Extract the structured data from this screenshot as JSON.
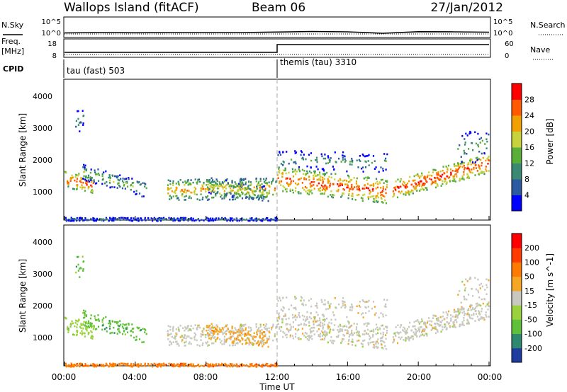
{
  "header": {
    "station": "Wallops Island (fitACF)",
    "beam": "Beam 06",
    "date": "27/Jan/2012"
  },
  "side_labels": {
    "nsky": "N.Sky",
    "nsearch": "N.Search",
    "freq": "Freq.",
    "freq_unit": "[MHz]",
    "nave": "Nave",
    "cpid": "CPID"
  },
  "noise_ticks": {
    "top": "10^5",
    "bottom": "10^0"
  },
  "freq_ticks": [
    "18",
    "8"
  ],
  "nave_ticks": [
    "60",
    "0"
  ],
  "cpid": {
    "left": "tau (fast) 503",
    "right": "themis (tau) 3310"
  },
  "xaxis": {
    "label": "Time UT",
    "ticks": [
      "00:00",
      "04:00",
      "08:00",
      "12:00",
      "16:00",
      "20:00",
      "00:00"
    ]
  },
  "yaxis": {
    "label": "Slant Range [km]",
    "ticks": [
      "1000",
      "2000",
      "3000",
      "4000"
    ]
  },
  "power_scale": {
    "label": "Power [dB]",
    "ticks": [
      "4",
      "8",
      "12",
      "16",
      "20",
      "24",
      "28"
    ],
    "colors": [
      "#0000ff",
      "#2c5aa0",
      "#3a8a73",
      "#5aae3a",
      "#c8d23c",
      "#f0a000",
      "#ff5a00",
      "#ff0000"
    ]
  },
  "velocity_scale": {
    "label": "Velocity [m s^-1]",
    "ticks": [
      "200",
      "100",
      "50",
      "15",
      "-15",
      "-50",
      "-100",
      "-200"
    ],
    "colors": [
      "#1e3ca0",
      "#2e8a6e",
      "#5fc03a",
      "#9ad23e",
      "#c8c8c0",
      "#f5a623",
      "#ff7a00",
      "#ff3c00",
      "#ff0000"
    ]
  },
  "chart_data": [
    {
      "type": "line",
      "title": "",
      "description_series": [
        {
          "name": "N.Sky",
          "x": [
            0,
            2,
            4,
            6,
            8,
            10,
            12,
            14,
            16,
            18,
            20,
            22,
            24
          ],
          "y_log10": [
            0.7,
            0.8,
            0.75,
            0.8,
            0.8,
            0.8,
            0.95,
            1.1,
            1.0,
            0.6,
            1.05,
            1.0,
            0.9
          ]
        }
      ]
    },
    {
      "type": "line",
      "series": [
        {
          "name": "Freq.",
          "x": [
            0,
            12,
            12,
            24
          ],
          "y": [
            11,
            11,
            16,
            16
          ]
        }
      ]
    },
    {
      "type": "heatmap",
      "title": "",
      "xlabel": "Time UT",
      "ylabel": "Slant Range [km]",
      "xlim": [
        0,
        24
      ],
      "ylim": [
        180,
        4600
      ],
      "colorbar": "Power [dB]",
      "clim": [
        0,
        32
      ]
    },
    {
      "type": "heatmap",
      "title": "",
      "xlabel": "Time UT",
      "ylabel": "Slant Range [km]",
      "xlim": [
        0,
        24
      ],
      "ylim": [
        180,
        4600
      ],
      "colorbar": "Velocity [m s^-1]",
      "clim": [
        -250,
        250
      ]
    }
  ]
}
